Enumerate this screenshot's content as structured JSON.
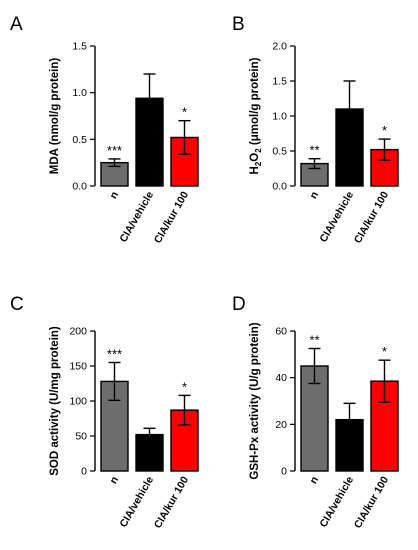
{
  "chart_data": [
    {
      "panel": "A",
      "type": "bar",
      "categories": [
        "n",
        "CIA/vehicle",
        "CIA/kur 100"
      ],
      "values": [
        0.25,
        0.94,
        0.52
      ],
      "errors": [
        0.04,
        0.26,
        0.18
      ],
      "significance": [
        "***",
        "",
        "*"
      ],
      "colors": [
        "#6d6d6d",
        "#000000",
        "#ff0000"
      ],
      "ylabel": "MDA (nmol/g protein)",
      "ylim": [
        0,
        1.5
      ],
      "yticks": [
        "0.0",
        "0.5",
        "1.0",
        "1.5"
      ]
    },
    {
      "panel": "B",
      "type": "bar",
      "categories": [
        "n",
        "CIA/vehicle",
        "CIA/kur 100"
      ],
      "values": [
        0.32,
        1.1,
        0.52
      ],
      "errors": [
        0.07,
        0.4,
        0.15
      ],
      "significance": [
        "**",
        "",
        "*"
      ],
      "colors": [
        "#6d6d6d",
        "#000000",
        "#ff0000"
      ],
      "ylabel": "H2O2 (μmol/g protein)",
      "ylim": [
        0,
        2.0
      ],
      "yticks": [
        "0.0",
        "0.5",
        "1.0",
        "1.5",
        "2.0"
      ]
    },
    {
      "panel": "C",
      "type": "bar",
      "categories": [
        "n",
        "CIA/vehicle",
        "CIA/kur 100"
      ],
      "values": [
        128,
        52,
        87
      ],
      "errors": [
        27,
        9,
        21
      ],
      "significance": [
        "***",
        "",
        "*"
      ],
      "colors": [
        "#6d6d6d",
        "#000000",
        "#ff0000"
      ],
      "ylabel": "SOD activity (U/mg protein)",
      "ylim": [
        0,
        200
      ],
      "yticks": [
        "0",
        "50",
        "100",
        "150",
        "200"
      ]
    },
    {
      "panel": "D",
      "type": "bar",
      "categories": [
        "n",
        "CIA/vehicle",
        "CIA/kur 100"
      ],
      "values": [
        45,
        22,
        38.5
      ],
      "errors": [
        7.5,
        7,
        9
      ],
      "significance": [
        "**",
        "",
        "*"
      ],
      "colors": [
        "#6d6d6d",
        "#000000",
        "#ff0000"
      ],
      "ylabel": "GSH-Px activity (U/g protein)",
      "ylim": [
        0,
        60
      ],
      "yticks": [
        "0",
        "20",
        "40",
        "60"
      ]
    }
  ]
}
